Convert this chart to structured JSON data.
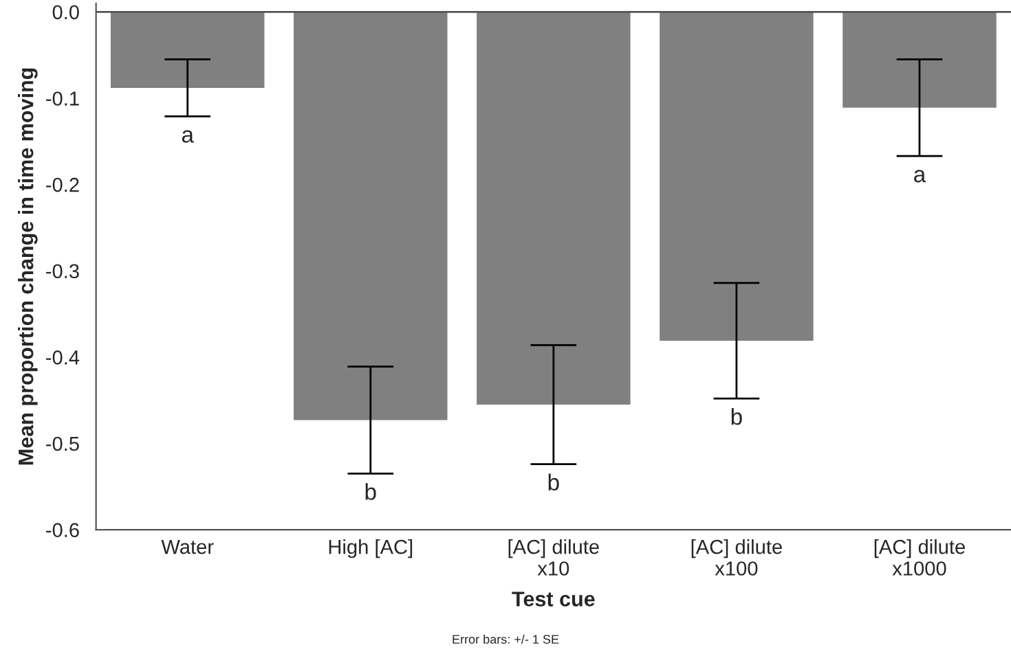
{
  "chart_data": {
    "type": "bar",
    "xlabel": "Test cue",
    "ylabel": "Mean proportion change in time moving",
    "categories": [
      "Water",
      "High [AC]",
      "[AC] dilute\nx10",
      "[AC] dilute\nx100",
      "[AC] dilute\nx1000"
    ],
    "values": [
      -0.088,
      -0.473,
      -0.455,
      -0.381,
      -0.111
    ],
    "errors": [
      0.033,
      0.062,
      0.069,
      0.067,
      0.056
    ],
    "color": "#808080",
    "ylim": [
      -0.6,
      0.01
    ],
    "yticks": [
      {
        "value": 0,
        "label": "0.0"
      },
      -0.1,
      -0.2,
      -0.3,
      -0.4,
      -0.5,
      -0.6
    ],
    "grid": false,
    "ref_lines": [
      {
        "axis": "y",
        "value": 0,
        "color": "#555555"
      }
    ],
    "annotations": [
      "a",
      "b",
      "b",
      "b",
      "a",
      "Error bars: +/- 1 SE"
    ]
  }
}
